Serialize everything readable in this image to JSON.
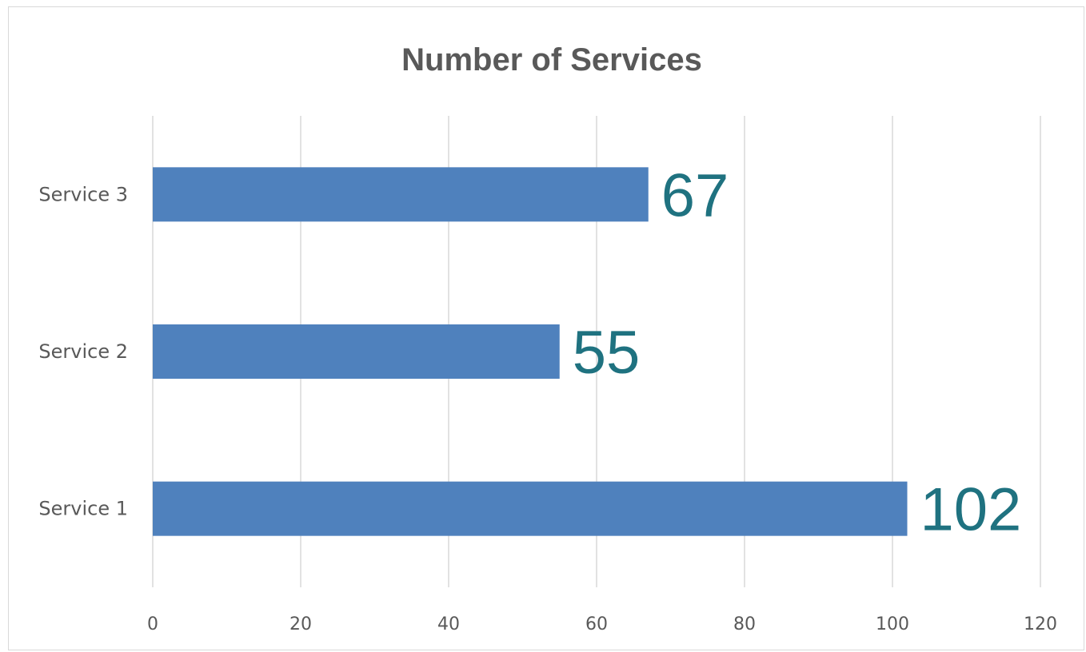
{
  "chart_data": {
    "type": "bar",
    "orientation": "horizontal",
    "title": "Number of Services",
    "categories": [
      "Service 1",
      "Service 2",
      "Service 3"
    ],
    "values": [
      102,
      55,
      67
    ],
    "data_labels": [
      "102",
      "55",
      "67"
    ],
    "xlim": [
      0,
      120
    ],
    "x_ticks": [
      "0",
      "20",
      "40",
      "60",
      "80",
      "100",
      "120"
    ],
    "xlabel": "",
    "ylabel": "",
    "grid": true,
    "legend": "none",
    "colors": {
      "bar": "#4f81bd",
      "data_label": "#1f7280",
      "text": "#595959",
      "grid": "#d9d9d9"
    }
  }
}
